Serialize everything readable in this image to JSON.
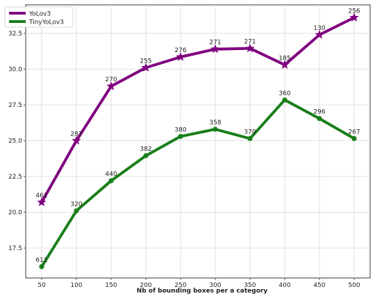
{
  "chart_data": {
    "type": "line",
    "xlabel": "Nb of bounding boxes per a category",
    "ylabel": "",
    "x": [
      50,
      100,
      150,
      200,
      250,
      300,
      350,
      400,
      450,
      500
    ],
    "xlim": [
      27,
      523
    ],
    "ylim": [
      16.0,
      94.5
    ],
    "xticks": [
      "50",
      "100",
      "150",
      "200",
      "250",
      "300",
      "350",
      "400",
      "450",
      "500"
    ],
    "yticks": [
      "17.5",
      "20.0",
      "22.5",
      "25.0",
      "27.5",
      "30.0",
      "32.5"
    ],
    "ytick_values": [
      17.5,
      20.0,
      22.5,
      25.0,
      27.5,
      30.0,
      32.5
    ],
    "grid": true,
    "legend_position": "top-left",
    "series": [
      {
        "name": "YoLov3",
        "color": "#800080",
        "marker": "star",
        "values": [
          20.7,
          25.0,
          28.8,
          30.1,
          30.85,
          31.4,
          31.45,
          30.3,
          32.4,
          33.6
        ],
        "labels": [
          "461",
          "287",
          "270",
          "255",
          "276",
          "271",
          "271",
          "185",
          "130",
          "256"
        ]
      },
      {
        "name": "TinyYoLov3",
        "color": "#1a7f1a",
        "marker": "circle",
        "values": [
          16.2,
          20.1,
          22.2,
          23.95,
          25.3,
          25.8,
          25.15,
          27.85,
          26.55,
          25.15
        ],
        "labels": [
          "611",
          "320",
          "440",
          "382",
          "380",
          "358",
          "370",
          "360",
          "296",
          "267"
        ]
      }
    ]
  }
}
